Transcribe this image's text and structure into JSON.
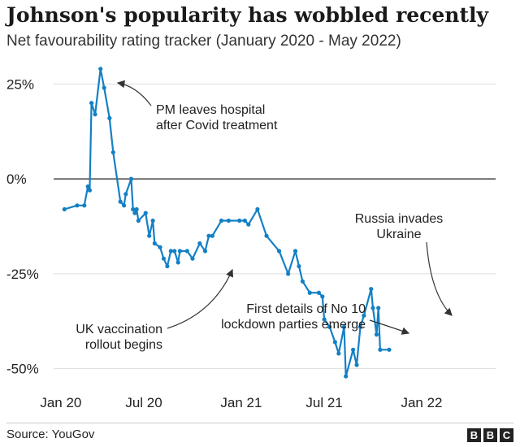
{
  "header": {
    "title": "Johnson's popularity has wobbled recently",
    "subtitle": "Net favourability rating tracker (January 2020 - May 2022)"
  },
  "footer": {
    "source": "Source: YouGov",
    "logo_letters": [
      "B",
      "B",
      "C"
    ]
  },
  "colors": {
    "line": "#1380c5",
    "grid": "#dddddd",
    "zero_line": "#222222",
    "text": "#222222"
  },
  "chart_data": {
    "type": "line",
    "title": "Johnson's popularity has wobbled recently",
    "subtitle": "Net favourability rating tracker (January 2020 - May 2022)",
    "xlabel": "",
    "ylabel": "",
    "xlim": [
      2020.0,
      2022.45
    ],
    "ylim": [
      -55,
      30
    ],
    "y_ticks": [
      {
        "value": 25,
        "label": "25%"
      },
      {
        "value": 0,
        "label": "0%"
      },
      {
        "value": -25,
        "label": "-25%"
      },
      {
        "value": -50,
        "label": "-50%"
      }
    ],
    "x_ticks": [
      {
        "value": 2020.04,
        "label": "Jan 20"
      },
      {
        "value": 2020.5,
        "label": "Jul 20"
      },
      {
        "value": 2021.04,
        "label": "Jan 21"
      },
      {
        "value": 2021.5,
        "label": "Jul 21"
      },
      {
        "value": 2022.04,
        "label": "Jan 22"
      }
    ],
    "series": [
      {
        "name": "Net favourability",
        "points": [
          [
            2020.06,
            -8
          ],
          [
            2020.13,
            -7
          ],
          [
            2020.17,
            -7
          ],
          [
            2020.19,
            -2
          ],
          [
            2020.2,
            -3
          ],
          [
            2020.21,
            20
          ],
          [
            2020.23,
            17
          ],
          [
            2020.26,
            29
          ],
          [
            2020.28,
            24
          ],
          [
            2020.31,
            16
          ],
          [
            2020.33,
            7
          ],
          [
            2020.37,
            -6
          ],
          [
            2020.39,
            -7
          ],
          [
            2020.4,
            -4
          ],
          [
            2020.43,
            0
          ],
          [
            2020.44,
            -8
          ],
          [
            2020.45,
            -9
          ],
          [
            2020.46,
            -8
          ],
          [
            2020.47,
            -11
          ],
          [
            2020.51,
            -9
          ],
          [
            2020.53,
            -15
          ],
          [
            2020.55,
            -11
          ],
          [
            2020.56,
            -17
          ],
          [
            2020.59,
            -18
          ],
          [
            2020.61,
            -21
          ],
          [
            2020.63,
            -23
          ],
          [
            2020.65,
            -19
          ],
          [
            2020.67,
            -19
          ],
          [
            2020.69,
            -22
          ],
          [
            2020.7,
            -19
          ],
          [
            2020.74,
            -19
          ],
          [
            2020.77,
            -21
          ],
          [
            2020.81,
            -17
          ],
          [
            2020.84,
            -19
          ],
          [
            2020.86,
            -15
          ],
          [
            2020.88,
            -15
          ],
          [
            2020.93,
            -11
          ],
          [
            2020.97,
            -11
          ],
          [
            2021.03,
            -11
          ],
          [
            2021.06,
            -11
          ],
          [
            2021.08,
            -12
          ],
          [
            2021.13,
            -8
          ],
          [
            2021.18,
            -15
          ],
          [
            2021.25,
            -19
          ],
          [
            2021.3,
            -25
          ],
          [
            2021.34,
            -19
          ],
          [
            2021.36,
            -23
          ],
          [
            2021.38,
            -27
          ],
          [
            2021.42,
            -30
          ],
          [
            2021.47,
            -30
          ],
          [
            2021.49,
            -31
          ],
          [
            2021.5,
            -37
          ],
          [
            2021.53,
            -39
          ],
          [
            2021.56,
            -43
          ],
          [
            2021.58,
            -46
          ],
          [
            2021.61,
            -39
          ],
          [
            2021.62,
            -52
          ],
          [
            2021.66,
            -45
          ],
          [
            2021.68,
            -49
          ],
          [
            2021.7,
            -39
          ],
          [
            2021.72,
            -36
          ],
          [
            2021.76,
            -29
          ],
          [
            2021.77,
            -34
          ],
          [
            2021.79,
            -41
          ],
          [
            2021.8,
            -34
          ],
          [
            2021.81,
            -45
          ],
          [
            2021.86,
            -45
          ]
        ]
      }
    ],
    "annotations": [
      {
        "text": [
          "PM leaves hospital",
          "after Covid treatment"
        ],
        "x": 2020.26,
        "y": 29
      },
      {
        "text": [
          "UK vaccination",
          "rollout begins"
        ],
        "x": 2020.77,
        "y": -21
      },
      {
        "text": [
          "First details of No 10",
          "lockdown parties emerge"
        ],
        "x": 2021.58,
        "y": -40
      },
      {
        "text": [
          "Russia invades",
          "Ukraine"
        ],
        "x": 2021.73,
        "y": -35
      }
    ]
  }
}
